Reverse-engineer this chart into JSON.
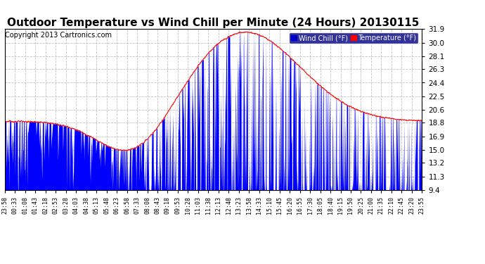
{
  "title": "Outdoor Temperature vs Wind Chill per Minute (24 Hours) 20130115",
  "copyright": "Copyright 2013 Cartronics.com",
  "ylabel_right_values": [
    9.4,
    11.3,
    13.2,
    15.0,
    16.9,
    18.8,
    20.6,
    22.5,
    24.4,
    26.3,
    28.1,
    30.0,
    31.9
  ],
  "ymin": 9.4,
  "ymax": 31.9,
  "legend_wind_chill": "Wind Chill (°F)",
  "legend_temperature": "Temperature (°F)",
  "wind_chill_color": "#0000ff",
  "temperature_color": "#ff0000",
  "background_color": "#ffffff",
  "grid_color": "#bbbbbb",
  "title_fontsize": 11,
  "copyright_fontsize": 7,
  "legend_wind_bg": "#0000cc",
  "legend_temp_bg": "#ff0000",
  "x_tick_labels": [
    "23:58",
    "00:33",
    "01:08",
    "01:43",
    "02:18",
    "02:53",
    "03:28",
    "04:03",
    "04:38",
    "05:13",
    "05:48",
    "06:23",
    "06:58",
    "07:33",
    "08:08",
    "08:43",
    "09:18",
    "09:53",
    "10:28",
    "11:03",
    "11:38",
    "12:13",
    "12:48",
    "13:23",
    "13:58",
    "14:33",
    "15:10",
    "15:45",
    "16:20",
    "16:55",
    "17:30",
    "18:05",
    "18:40",
    "19:15",
    "19:50",
    "20:25",
    "21:00",
    "21:35",
    "22:10",
    "22:45",
    "23:20",
    "23:55"
  ]
}
